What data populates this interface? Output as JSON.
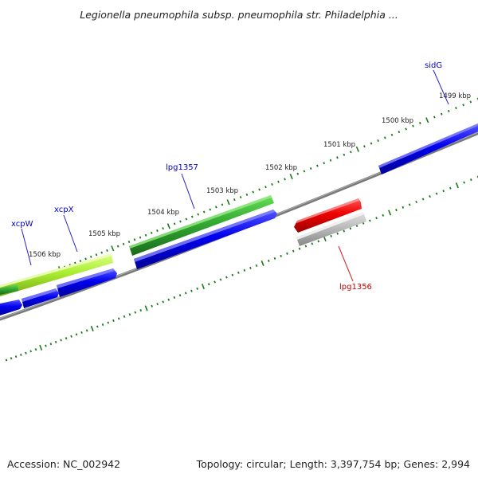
{
  "title": "Legionella pneumophila subsp. pneumophila str. Philadelphia ...",
  "footer": {
    "accession": "Accession: NC_002942",
    "summary": "Topology: circular; Length: 3,397,754 bp; Genes: 2,994"
  },
  "ruler_labels": [
    "1499 kbp",
    "1500 kbp",
    "1501 kbp",
    "1502 kbp",
    "1503 kbp",
    "1504 kbp",
    "1505 kbp",
    "1506 kbp"
  ],
  "gene_labels": [
    {
      "name": "sidG",
      "color": "#0000cc"
    },
    {
      "name": "lpg1357",
      "color": "#0000cc"
    },
    {
      "name": "xcpX",
      "color": "#0000cc"
    },
    {
      "name": "xcpW",
      "color": "#0000cc"
    },
    {
      "name": "lpg1356",
      "color": "#cc0000"
    }
  ],
  "colors": {
    "forward_gene": "#0000ee",
    "reverse_gene": "#ee0000",
    "pseudo_gene": "#b8b8b8",
    "cds_feature_dark": "#2aa02a",
    "cds_feature_light": "#aaee33",
    "backbone": "#777777",
    "tick": "#1a7a1a"
  }
}
